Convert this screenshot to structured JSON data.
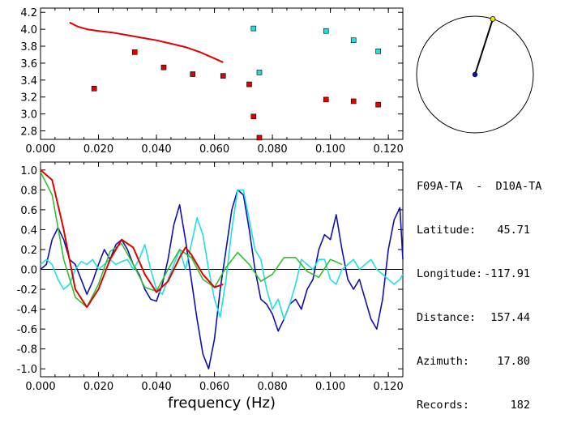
{
  "station": {
    "title": "F09A-TA  -  D10A-TA",
    "rows": [
      {
        "label": "Latitude:",
        "value": "45.71"
      },
      {
        "label": "Longitude:",
        "value": "-117.91"
      },
      {
        "label": "Distance:",
        "value": "157.44"
      },
      {
        "label": "Azimuth:",
        "value": "17.80"
      },
      {
        "label": "Records:",
        "value": "182"
      }
    ]
  },
  "colors": {
    "red": "#e00000",
    "blue": "#1010b0",
    "cyan": "#20e0e0",
    "green": "#30c030",
    "axis": "#000000"
  },
  "chart_data": [
    {
      "type": "scatter",
      "xlim": [
        0.0,
        0.125
      ],
      "ylim": [
        2.7,
        4.25
      ],
      "xticks": [
        "0.000",
        "0.020",
        "0.040",
        "0.060",
        "0.080",
        "0.100",
        "0.120"
      ],
      "yticks": [
        "2.8",
        "3.0",
        "3.2",
        "3.4",
        "3.6",
        "3.8",
        "4.0",
        "4.2"
      ],
      "xtick_values": [
        0.0,
        0.02,
        0.04,
        0.06,
        0.08,
        0.1,
        0.12
      ],
      "ytick_values": [
        2.8,
        3.0,
        3.2,
        3.4,
        3.6,
        3.8,
        4.0,
        4.2
      ],
      "series": [
        {
          "color": "red",
          "kind": "line",
          "x": [
            0.01,
            0.013,
            0.016,
            0.02,
            0.025,
            0.03,
            0.035,
            0.04,
            0.045,
            0.05,
            0.055,
            0.059,
            0.063
          ],
          "y": [
            4.08,
            4.03,
            4.0,
            3.98,
            3.96,
            3.93,
            3.9,
            3.87,
            3.83,
            3.79,
            3.73,
            3.67,
            3.61
          ]
        },
        {
          "color": "red",
          "kind": "points",
          "x": [
            0.0185,
            0.0325,
            0.0425,
            0.0525,
            0.063,
            0.072,
            0.0735,
            0.0755,
            0.0985,
            0.108,
            0.1165
          ],
          "y": [
            3.3,
            3.73,
            3.55,
            3.47,
            3.45,
            3.35,
            2.97,
            2.72,
            3.17,
            3.15,
            3.11
          ]
        },
        {
          "color": "cyan",
          "kind": "points",
          "x": [
            0.0735,
            0.0755,
            0.0985,
            0.108,
            0.1165
          ],
          "y": [
            4.01,
            3.49,
            3.98,
            3.87,
            3.74
          ]
        }
      ]
    },
    {
      "type": "line",
      "xlim": [
        0.0,
        0.125
      ],
      "ylim": [
        -1.08,
        1.08
      ],
      "xlabel": "frequency  (Hz)",
      "xticks": [
        "0.000",
        "0.020",
        "0.040",
        "0.060",
        "0.080",
        "0.100",
        "0.120"
      ],
      "xtick_values": [
        0.0,
        0.02,
        0.04,
        0.06,
        0.08,
        0.1,
        0.12
      ],
      "yticks": [
        "1.0",
        "0.8",
        "0.6",
        "0.4",
        "0.2",
        "0.0",
        "-0.2",
        "-0.4",
        "-0.6",
        "-0.8",
        "-1.0"
      ],
      "ytick_values": [
        1.0,
        0.8,
        0.6,
        0.4,
        0.2,
        0.0,
        -0.2,
        -0.4,
        -0.6,
        -0.8,
        -1.0
      ],
      "series": [
        {
          "color": "blue",
          "x": [
            0,
            0.002,
            0.004,
            0.006,
            0.008,
            0.01,
            0.012,
            0.014,
            0.016,
            0.018,
            0.02,
            0.022,
            0.024,
            0.026,
            0.028,
            0.03,
            0.032,
            0.034,
            0.036,
            0.038,
            0.04,
            0.042,
            0.044,
            0.046,
            0.048,
            0.05,
            0.052,
            0.054,
            0.056,
            0.058,
            0.06,
            0.062,
            0.064,
            0.066,
            0.068,
            0.07,
            0.072,
            0.074,
            0.076,
            0.078,
            0.08,
            0.082,
            0.084,
            0.086,
            0.088,
            0.09,
            0.092,
            0.094,
            0.096,
            0.098,
            0.1,
            0.102,
            0.104,
            0.106,
            0.108,
            0.11,
            0.112,
            0.114,
            0.116,
            0.118,
            0.12,
            0.122,
            0.124,
            0.125
          ],
          "y": [
            0.0,
            0.05,
            0.3,
            0.42,
            0.3,
            0.1,
            0.05,
            -0.1,
            -0.25,
            -0.12,
            0.05,
            0.2,
            0.1,
            0.25,
            0.3,
            0.2,
            0.05,
            -0.05,
            -0.2,
            -0.3,
            -0.32,
            -0.15,
            0.1,
            0.45,
            0.65,
            0.3,
            -0.1,
            -0.5,
            -0.85,
            -1.0,
            -0.7,
            -0.2,
            0.2,
            0.6,
            0.8,
            0.75,
            0.4,
            0.0,
            -0.3,
            -0.35,
            -0.45,
            -0.62,
            -0.5,
            -0.35,
            -0.3,
            -0.4,
            -0.2,
            -0.1,
            0.2,
            0.35,
            0.3,
            0.55,
            0.2,
            -0.1,
            -0.2,
            -0.1,
            -0.3,
            -0.5,
            -0.6,
            -0.3,
            0.2,
            0.5,
            0.62,
            0.1
          ]
        },
        {
          "color": "cyan",
          "x": [
            0,
            0.002,
            0.004,
            0.006,
            0.008,
            0.01,
            0.012,
            0.014,
            0.016,
            0.018,
            0.02,
            0.022,
            0.024,
            0.026,
            0.028,
            0.03,
            0.032,
            0.034,
            0.036,
            0.038,
            0.04,
            0.042,
            0.044,
            0.046,
            0.048,
            0.05,
            0.052,
            0.054,
            0.056,
            0.058,
            0.06,
            0.062,
            0.064,
            0.066,
            0.068,
            0.07,
            0.072,
            0.074,
            0.076,
            0.078,
            0.08,
            0.082,
            0.084,
            0.086,
            0.088,
            0.09,
            0.092,
            0.094,
            0.096,
            0.098,
            0.1,
            0.102,
            0.104,
            0.106,
            0.108,
            0.11,
            0.112,
            0.114,
            0.116,
            0.118,
            0.12,
            0.122,
            0.124,
            0.125
          ],
          "y": [
            0.05,
            0.1,
            0.05,
            -0.1,
            -0.2,
            -0.15,
            0.0,
            0.08,
            0.05,
            0.1,
            0.0,
            0.05,
            0.1,
            0.05,
            0.08,
            0.1,
            0.0,
            0.1,
            0.25,
            0.0,
            -0.2,
            -0.25,
            -0.1,
            0.05,
            0.2,
            0.0,
            0.25,
            0.52,
            0.35,
            0.0,
            -0.3,
            -0.48,
            -0.1,
            0.4,
            0.8,
            0.8,
            0.5,
            0.2,
            0.1,
            -0.2,
            -0.4,
            -0.3,
            -0.5,
            -0.35,
            -0.15,
            0.1,
            0.05,
            0.0,
            0.1,
            0.1,
            -0.1,
            -0.15,
            0.0,
            0.05,
            0.1,
            0.0,
            0.05,
            0.1,
            0.0,
            -0.05,
            -0.1,
            -0.15,
            -0.1,
            -0.05
          ]
        },
        {
          "color": "green",
          "x": [
            0,
            0.004,
            0.008,
            0.012,
            0.016,
            0.02,
            0.024,
            0.028,
            0.032,
            0.036,
            0.04,
            0.044,
            0.048,
            0.052,
            0.056,
            0.06,
            0.064,
            0.068,
            0.072,
            0.076,
            0.08,
            0.084,
            0.088,
            0.092,
            0.096,
            0.1,
            0.104
          ],
          "y": [
            0.98,
            0.75,
            0.1,
            -0.28,
            -0.38,
            -0.15,
            0.18,
            0.26,
            0.05,
            -0.18,
            -0.22,
            0.0,
            0.2,
            0.12,
            -0.1,
            -0.18,
            0.02,
            0.17,
            0.05,
            -0.12,
            -0.05,
            0.12,
            0.12,
            -0.02,
            -0.08,
            0.1,
            0.05
          ]
        },
        {
          "color": "red",
          "x": [
            0,
            0.004,
            0.008,
            0.012,
            0.016,
            0.02,
            0.024,
            0.028,
            0.032,
            0.036,
            0.04,
            0.044,
            0.048,
            0.05,
            0.052,
            0.056,
            0.06,
            0.063
          ],
          "y": [
            1.0,
            0.9,
            0.4,
            -0.2,
            -0.38,
            -0.2,
            0.1,
            0.3,
            0.22,
            -0.05,
            -0.23,
            -0.12,
            0.12,
            0.22,
            0.15,
            -0.05,
            -0.18,
            -0.15
          ]
        }
      ]
    }
  ],
  "compass": {
    "azimuth_deg": 17.8
  }
}
